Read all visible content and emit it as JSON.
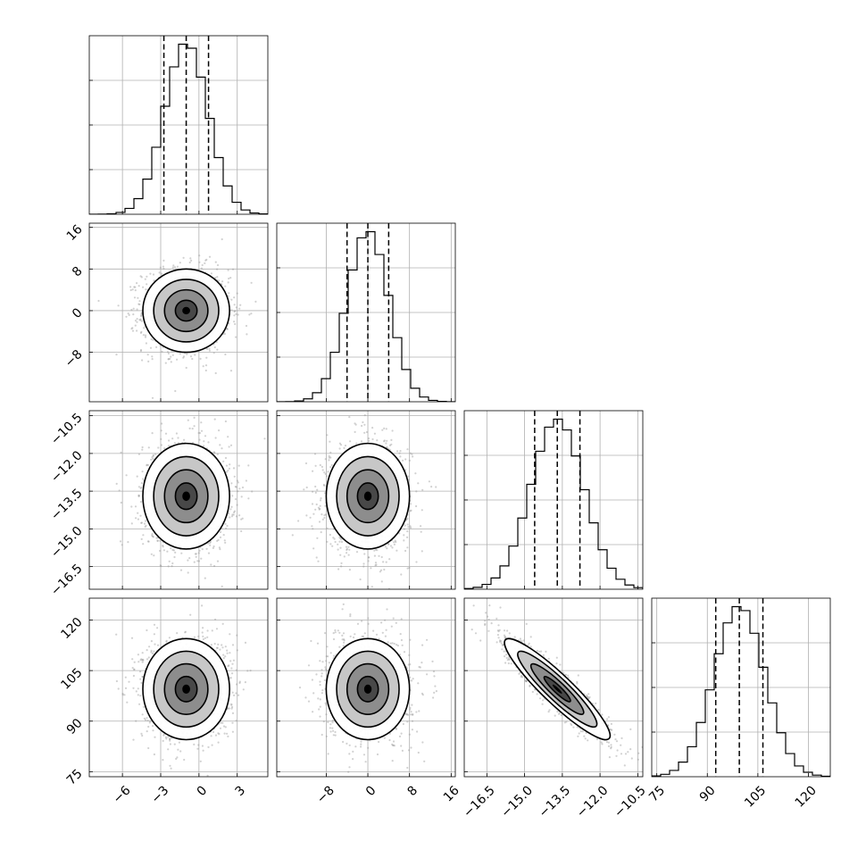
{
  "chart_data": {
    "type": "corner",
    "n_params": 4,
    "grid": true,
    "params": [
      {
        "mean": -1.0,
        "std": 1.7,
        "range": [
          -8.6,
          5.4
        ],
        "ticks": [
          -6,
          -3,
          0,
          3
        ],
        "tick_labels": [
          "−6",
          "−3",
          "0",
          "3"
        ],
        "quantiles": [
          -2.75,
          -1.0,
          0.75
        ]
      },
      {
        "mean": 0.0,
        "std": 4.0,
        "range": [
          -17.5,
          16.8
        ],
        "ticks": [
          -8,
          0,
          8,
          16
        ],
        "tick_labels": [
          "−8",
          "0",
          "8",
          "16"
        ],
        "quantiles": [
          -4.0,
          0.0,
          4.0
        ]
      },
      {
        "mean": -13.7,
        "std": 1.05,
        "range": [
          -17.4,
          -10.3
        ],
        "ticks": [
          -16.5,
          -15.0,
          -13.5,
          -12.0,
          -10.5
        ],
        "tick_labels": [
          "−16.5",
          "−15.0",
          "−13.5",
          "−12.0",
          "−10.5"
        ],
        "quantiles": [
          -14.6,
          -13.7,
          -12.8
        ]
      },
      {
        "mean": 99.5,
        "std": 7.5,
        "range": [
          73.5,
          126.5
        ],
        "ticks": [
          75,
          90,
          105,
          120
        ],
        "tick_labels": [
          "75",
          "90",
          "105",
          "120"
        ],
        "quantiles": [
          92.5,
          99.5,
          106.5
        ]
      }
    ],
    "x_tick_labels": [
      [
        "−6",
        "−3",
        "0",
        "3"
      ],
      [
        "−8",
        "0",
        "8",
        "16"
      ],
      [
        "−16.5",
        "−15.0",
        "−13.5",
        "−12.0",
        "−10.5"
      ],
      [
        "75",
        "90",
        "105",
        "120"
      ]
    ],
    "y_tick_labels": {
      "row1": [
        "16",
        "8",
        "0",
        "−8"
      ],
      "row2": [
        "−10.5",
        "−12.0",
        "−13.5",
        "−15.0",
        "−16.5"
      ],
      "row3": [
        "120",
        "105",
        "90",
        "75"
      ]
    },
    "correlations": [
      {
        "row": 1,
        "col": 0,
        "r": 0.0
      },
      {
        "row": 2,
        "col": 0,
        "r": 0.0
      },
      {
        "row": 2,
        "col": 1,
        "r": 0.0
      },
      {
        "row": 3,
        "col": 0,
        "r": 0.0
      },
      {
        "row": 3,
        "col": 1,
        "r": 0.0
      },
      {
        "row": 3,
        "col": 2,
        "r": -0.92
      }
    ],
    "contour_levels_sigma": [
      0.5,
      1.0,
      1.5,
      2.0
    ],
    "colors": {
      "hist": "#000000",
      "scatter": "#9a9a9a",
      "density": "#000000",
      "grid": "#b0b0b0"
    }
  }
}
